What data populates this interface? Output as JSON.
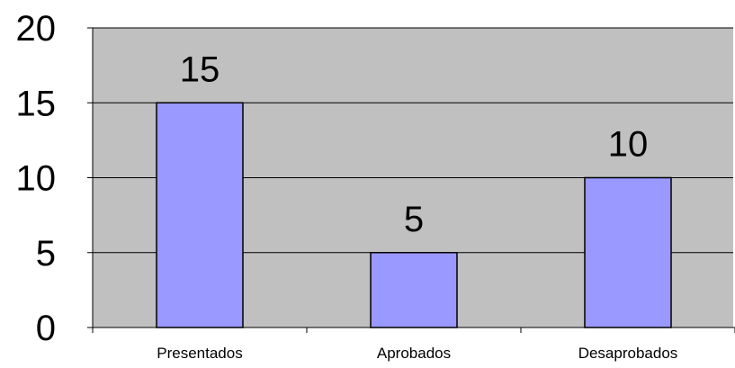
{
  "chart_data": {
    "type": "bar",
    "categories": [
      "Presentados",
      "Aprobados",
      "Desaprobados"
    ],
    "values": [
      15,
      5,
      10
    ],
    "data_labels": [
      "15",
      "5",
      "10"
    ],
    "yticks": [
      0,
      5,
      10,
      15,
      20
    ],
    "ylim": [
      0,
      20
    ],
    "grid": true,
    "legend": "none",
    "title": "",
    "xlabel": "",
    "ylabel": ""
  },
  "colors": {
    "plot_background": "#c0c0c0",
    "bar_fill": "#9999ff",
    "bar_stroke": "#000000",
    "gridline": "#000000"
  }
}
